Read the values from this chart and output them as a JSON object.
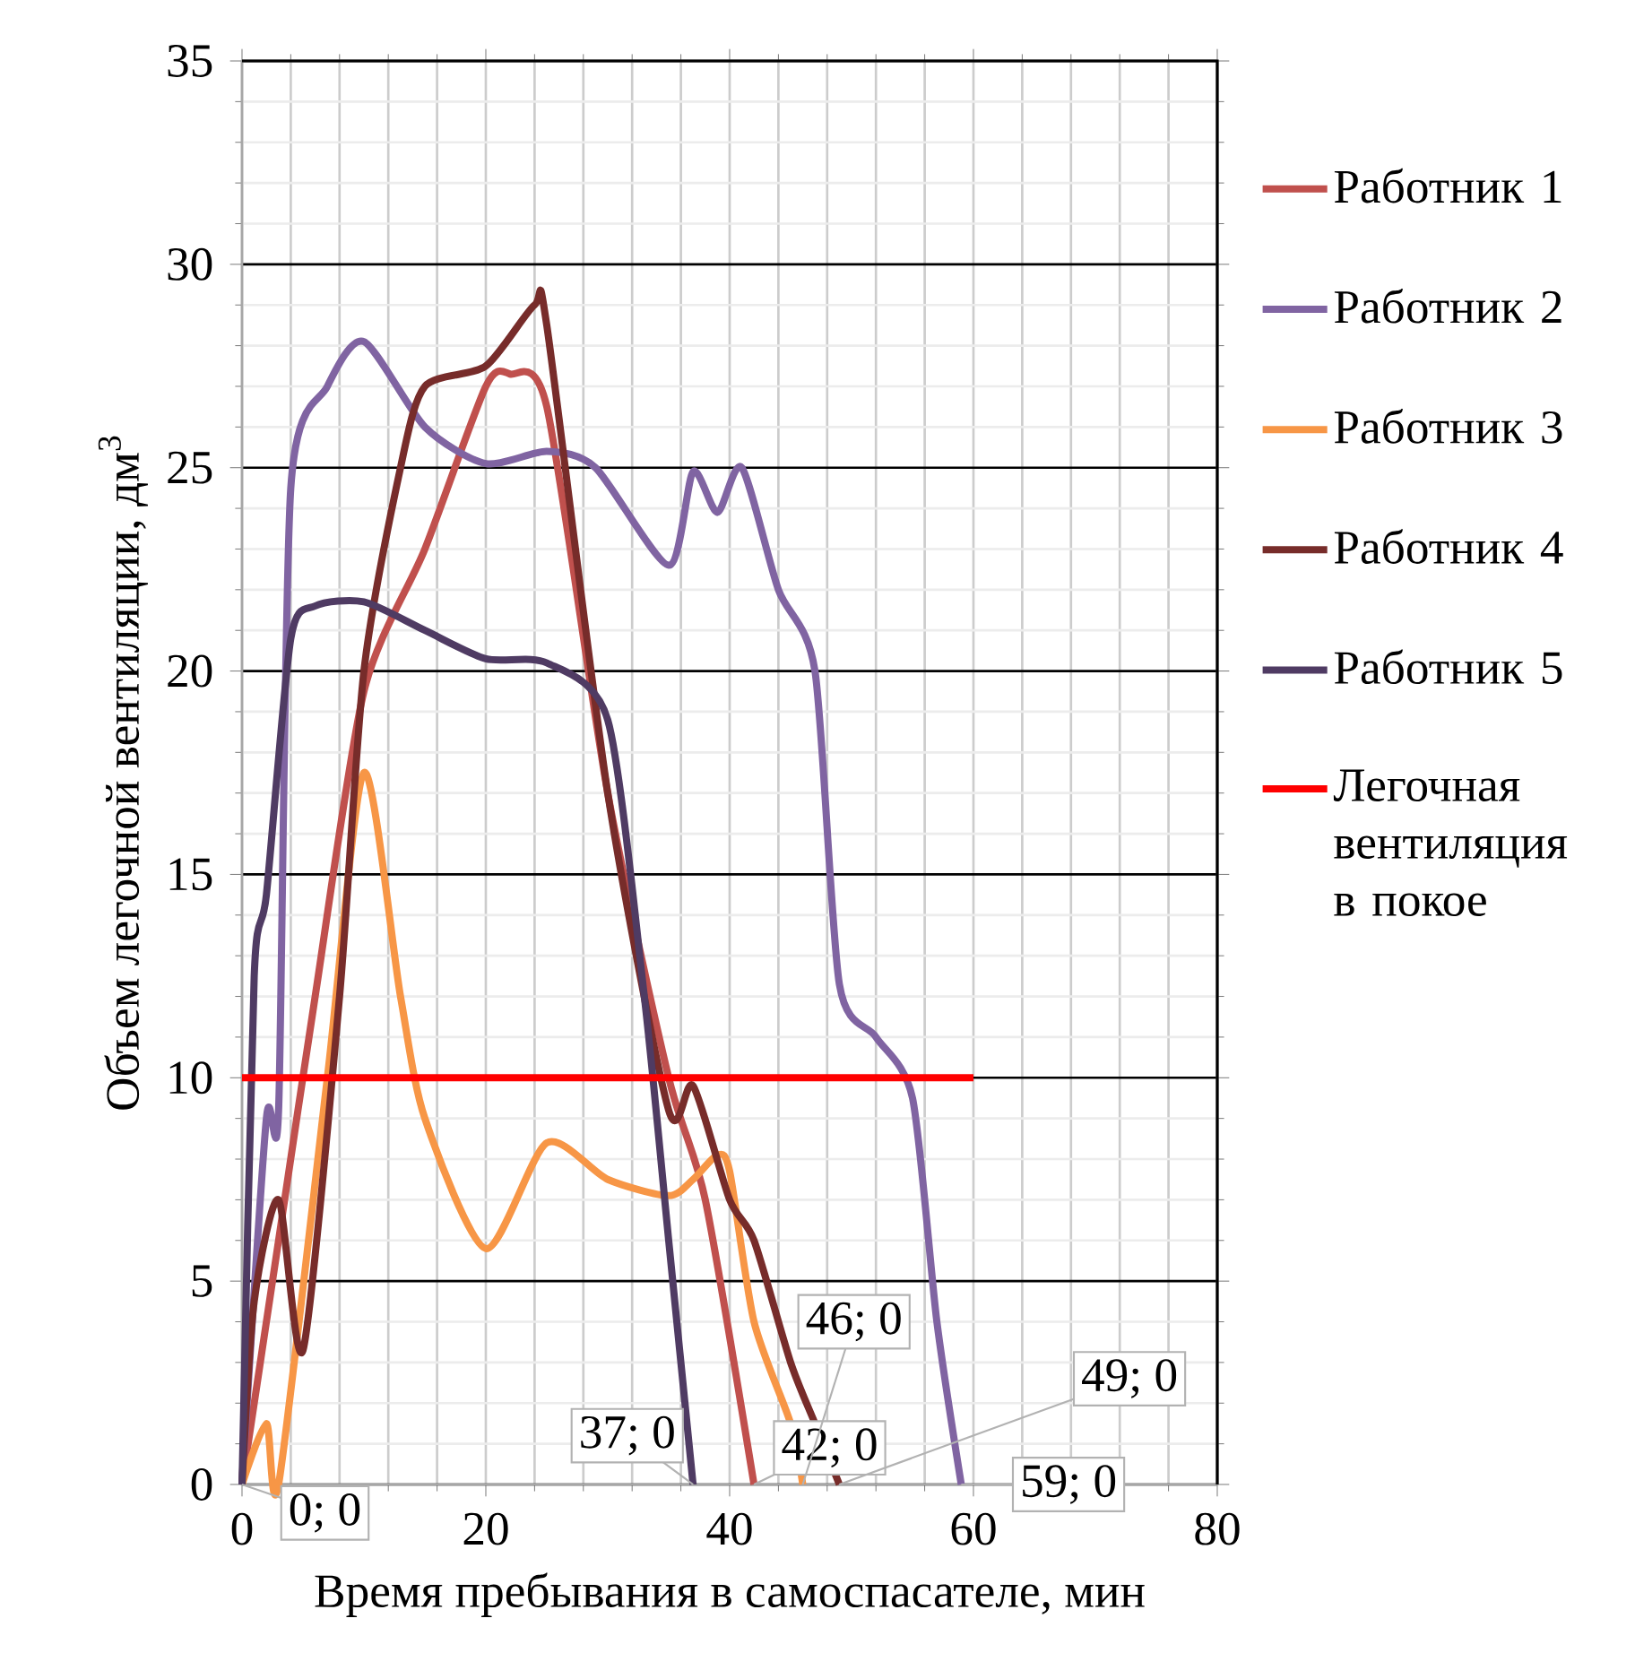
{
  "chart_data": {
    "type": "line",
    "xlabel": "Время пребывания в самоспасателе, мин",
    "ylabel": "Объем легочной вентиляции, дм$^{3}$",
    "xlim": [
      0,
      80
    ],
    "xticks": [
      0,
      20,
      40,
      60,
      80
    ],
    "ylim": [
      0,
      35
    ],
    "yticks": [
      0,
      5,
      10,
      15,
      20,
      25,
      30,
      35
    ],
    "grid": true,
    "legend": "right",
    "marker": "none",
    "line_style": "solid",
    "series": [
      {
        "name": "Работник 1",
        "color": "#c0504d",
        "x": [
          0,
          3,
          6,
          10,
          15,
          20,
          22,
          25,
          30,
          35,
          38,
          42
        ],
        "values": [
          0,
          6,
          12,
          19.5,
          23,
          27,
          27.3,
          26.5,
          17,
          10,
          7,
          0
        ]
      },
      {
        "name": "Работник 2",
        "color": "#8064a2",
        "x": [
          0,
          2,
          3,
          4,
          7,
          10,
          15,
          20,
          25,
          29,
          35,
          37,
          39,
          41,
          44,
          47,
          49,
          52,
          55,
          57,
          59
        ],
        "values": [
          0,
          9,
          9.2,
          24.5,
          27,
          28.1,
          26,
          25.1,
          25.4,
          25,
          22.6,
          24.9,
          23.9,
          25,
          22,
          20,
          12.3,
          11,
          9.5,
          4,
          0
        ]
      },
      {
        "name": "Работник 3",
        "color": "#f79646",
        "x": [
          0,
          2,
          3,
          7,
          10,
          13,
          15,
          20,
          25,
          30,
          35,
          37,
          39,
          40,
          42,
          45,
          46
        ],
        "values": [
          0,
          1.5,
          0,
          10,
          17.5,
          12,
          9,
          5.8,
          8.4,
          7.5,
          7.1,
          7.5,
          8.1,
          7.7,
          4,
          1.5,
          0
        ]
      },
      {
        "name": "Работник 4",
        "color": "#772c2a",
        "x": [
          0,
          1,
          3,
          5,
          8,
          10,
          13,
          15,
          20,
          24,
          25,
          30,
          35,
          37,
          40,
          42,
          45,
          47,
          49
        ],
        "values": [
          0,
          4.5,
          7,
          3.3,
          12,
          20,
          25,
          27,
          27.5,
          29,
          28.5,
          17,
          9.2,
          9.8,
          7,
          6,
          3,
          1.5,
          0
        ]
      },
      {
        "name": "Работник 5",
        "color": "#4f3b63",
        "x": [
          0,
          1,
          2,
          4,
          6,
          10,
          15,
          20,
          25,
          30,
          33,
          35,
          37
        ],
        "values": [
          0,
          12.5,
          14.5,
          20.8,
          21.6,
          21.7,
          21,
          20.3,
          20.2,
          18.8,
          12,
          6,
          0
        ]
      },
      {
        "name": "Легочная вентиляция в покое",
        "color": "#ff0000",
        "x": [
          0,
          60
        ],
        "values": [
          10,
          10
        ]
      }
    ],
    "annotations": [
      {
        "text": "0; 0",
        "x": 0,
        "y": 0
      },
      {
        "text": "37; 0",
        "x": 37,
        "y": 0
      },
      {
        "text": "42; 0",
        "x": 42,
        "y": 0
      },
      {
        "text": "46; 0",
        "x": 46,
        "y": 0
      },
      {
        "text": "49; 0",
        "x": 49,
        "y": 0
      },
      {
        "text": "59; 0",
        "x": 59,
        "y": 0
      }
    ]
  }
}
